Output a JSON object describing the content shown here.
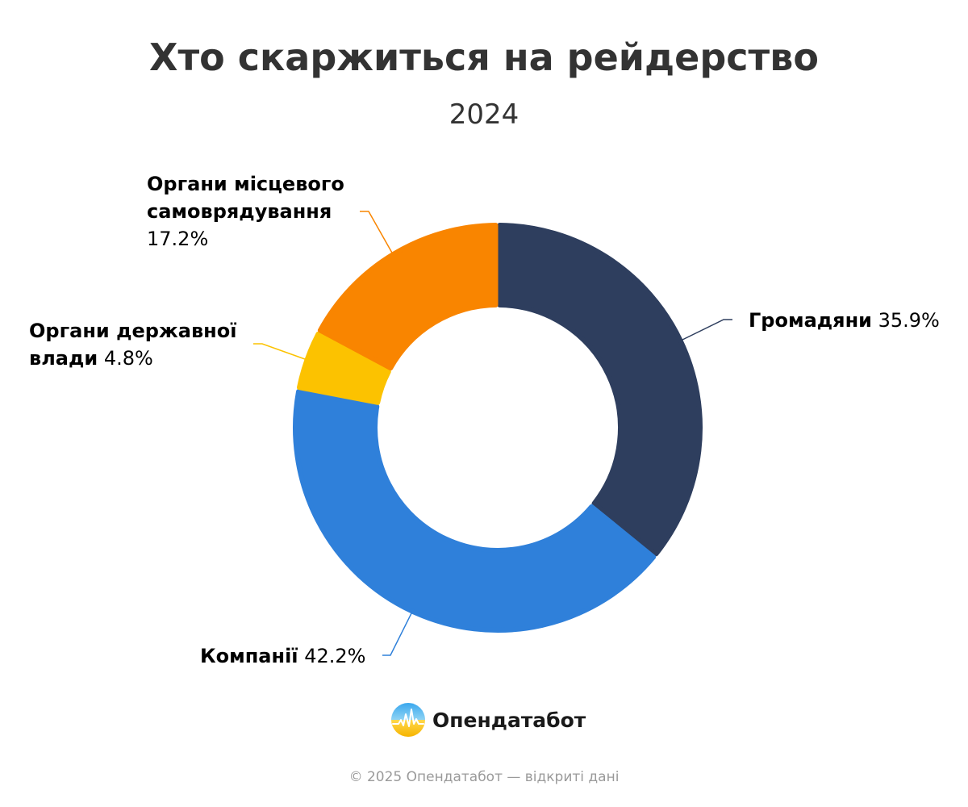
{
  "header": {
    "title": "Хто скаржиться на рейдерство",
    "subtitle": "2024"
  },
  "chart_data": {
    "type": "pie",
    "title": "Хто скаржиться на рейдерство",
    "subtitle": "2024",
    "slices": [
      {
        "name": "Громадяни",
        "value": 35.9,
        "value_label": "35.9%",
        "color": "#2e3e5e"
      },
      {
        "name": "Компанії",
        "value": 42.2,
        "value_label": "42.2%",
        "color": "#2f80da"
      },
      {
        "name": "Органи державної влади",
        "value": 4.8,
        "value_label": "4.8%",
        "color": "#fcc200"
      },
      {
        "name": "Органи місцевого самоврядування",
        "value": 17.2,
        "value_label": "17.2%",
        "color": "#f98500"
      }
    ]
  },
  "labels": {
    "hromadiany": {
      "name": "Громадяни",
      "value": "35.9%"
    },
    "kompanii": {
      "name": "Компанії",
      "value": "42.2%"
    },
    "derzh": {
      "name_line1": "Органи державної",
      "name_line2": "влади",
      "value": "4.8%"
    },
    "misc": {
      "name_line1": "Органи місцевого",
      "name_line2": "самоврядування",
      "value": "17.2%"
    }
  },
  "brand": {
    "name": "Опендатабот",
    "icon": "opendatabot-logo-icon"
  },
  "footer": {
    "text": "© 2025 Опендатабот — відкриті дані"
  }
}
